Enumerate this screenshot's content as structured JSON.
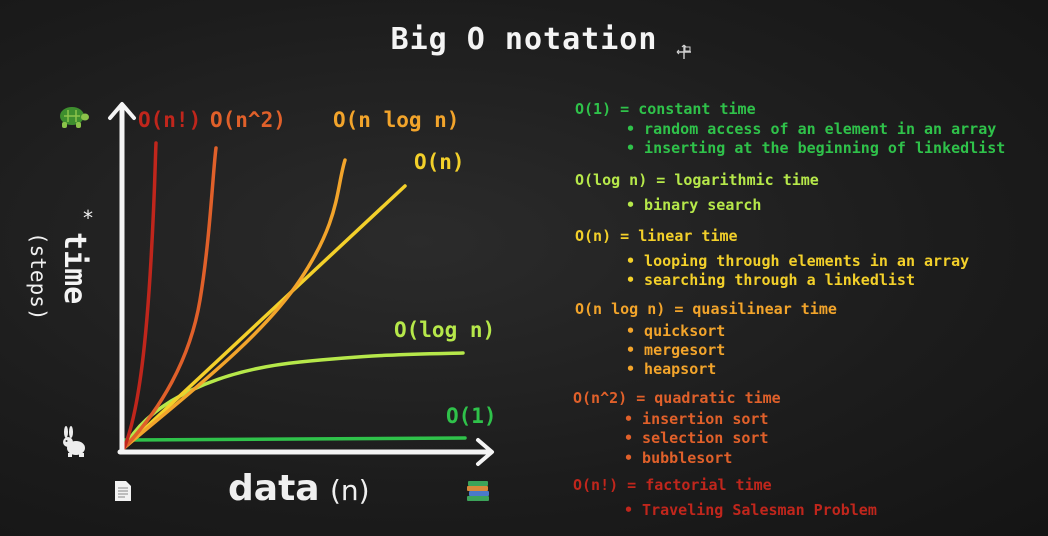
{
  "title": "Big O notation",
  "colors": {
    "o1": "#2fc24a",
    "ologn": "#b6e84a",
    "on": "#f3d02a",
    "onlogn": "#f2a42b",
    "on2": "#e0602a",
    "onfact": "#c0261c",
    "axis": "#f4f4f4"
  },
  "icons": {
    "turtle": "turtle-icon",
    "rabbit": "rabbit-icon",
    "page": "document-icon",
    "books": "books-stack-icon",
    "cursor": "move-cursor-icon"
  },
  "axes": {
    "y_label": "time",
    "y_star": "*",
    "y_sub": "(steps)",
    "x_label": "data",
    "x_sub": "(n)"
  },
  "curve_labels": {
    "onfact": "O(n!)",
    "on2": "O(n^2)",
    "onlogn": "O(n log n)",
    "on": "O(n)",
    "ologn": "O(log n)",
    "o1": "O(1)"
  },
  "legend": {
    "o1": {
      "head": "O(1) = constant time",
      "items": [
        "random access of an element in an array",
        "inserting at the beginning of linkedlist"
      ]
    },
    "ologn": {
      "head": "O(log n) = logarithmic time",
      "items": [
        "binary search"
      ]
    },
    "on": {
      "head": "O(n) = linear time",
      "items": [
        "looping through elements in an array",
        "searching through a linkedlist"
      ]
    },
    "onlogn": {
      "head": "O(n log n) = quasilinear time",
      "items": [
        "quicksort",
        "mergesort",
        "heapsort"
      ]
    },
    "on2": {
      "head": "O(n^2) = quadratic time",
      "items": [
        "insertion sort",
        "selection sort",
        "bubblesort"
      ]
    },
    "onfact": {
      "head": "O(n!) = factorial time",
      "items": [
        "Traveling Salesman Problem"
      ]
    }
  },
  "chart_data": {
    "type": "line",
    "title": "Big O notation",
    "xlabel": "data (n)",
    "ylabel": "time (steps)",
    "grid": false,
    "series": [
      {
        "name": "O(1)"
      },
      {
        "name": "O(log n)"
      },
      {
        "name": "O(n)"
      },
      {
        "name": "O(n log n)"
      },
      {
        "name": "O(n^2)"
      },
      {
        "name": "O(n!)"
      }
    ]
  }
}
